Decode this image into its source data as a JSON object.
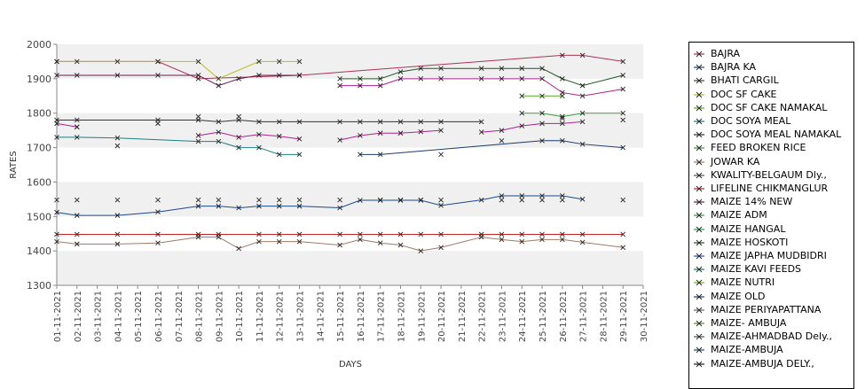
{
  "chart_data": {
    "type": "line",
    "xlabel": "DAYS",
    "ylabel": "RATES",
    "ylim": [
      1300,
      2000
    ],
    "yticks": [
      1300,
      1400,
      1500,
      1600,
      1700,
      1800,
      1900,
      2000
    ],
    "grid": "alternating bands",
    "legend": "right",
    "x": [
      "01-11-2021",
      "02-11-2021",
      "03-11-2021",
      "04-11-2021",
      "05-11-2021",
      "06-11-2021",
      "07-11-2021",
      "08-11-2021",
      "09-11-2021",
      "10-11-2021",
      "11-11-2021",
      "12-11-2021",
      "13-11-2021",
      "14-11-2021",
      "15-11-2021",
      "16-11-2021",
      "17-11-2021",
      "18-11-2021",
      "19-11-2021",
      "20-11-2021",
      "21-11-2021",
      "22-11-2021",
      "23-11-2021",
      "24-11-2021",
      "25-11-2021",
      "26-11-2021",
      "27-11-2021",
      "28-11-2021",
      "29-11-2021",
      "30-11-2021"
    ],
    "series": [
      {
        "name": "BAJRA",
        "color": "#aa3355",
        "points": [
          [
            "01-11-2021",
            1950
          ],
          [
            "06-11-2021",
            1950
          ],
          [
            "08-11-2021",
            1900
          ],
          [
            "13-11-2021",
            1910
          ],
          [
            "26-11-2021",
            1968
          ],
          [
            "27-11-2021",
            1968
          ],
          [
            "29-11-2021",
            1950
          ]
        ]
      },
      {
        "name": "BAJRA KA",
        "color": "#1a4a8a",
        "points": [
          [
            "01-11-2021",
            1512
          ],
          [
            "02-11-2021",
            1503
          ],
          [
            "04-11-2021",
            1503
          ],
          [
            "06-11-2021",
            1513
          ],
          [
            "08-11-2021",
            1530
          ],
          [
            "09-11-2021",
            1530
          ],
          [
            "10-11-2021",
            1525
          ],
          [
            "11-11-2021",
            1530
          ],
          [
            "12-11-2021",
            1530
          ],
          [
            "13-11-2021",
            1530
          ],
          [
            "15-11-2021",
            1525
          ],
          [
            "16-11-2021",
            1547
          ],
          [
            "17-11-2021",
            1547
          ],
          [
            "18-11-2021",
            1547
          ],
          [
            "19-11-2021",
            1547
          ],
          [
            "20-11-2021",
            1532
          ],
          [
            "22-11-2021",
            1548
          ],
          [
            "23-11-2021",
            1560
          ],
          [
            "24-11-2021",
            1560
          ],
          [
            "25-11-2021",
            1560
          ],
          [
            "26-11-2021",
            1560
          ],
          [
            "27-11-2021",
            1550
          ]
        ]
      },
      {
        "name": "BHATI CARGIL",
        "color": "#444444",
        "points": [
          [
            "01-11-2021",
            1548
          ],
          [
            "02-11-2021",
            1548
          ],
          [
            "04-11-2021",
            1548
          ],
          [
            "06-11-2021",
            1548
          ],
          [
            "08-11-2021",
            1548
          ],
          [
            "09-11-2021",
            1548
          ],
          [
            "11-11-2021",
            1548
          ],
          [
            "12-11-2021",
            1548
          ],
          [
            "13-11-2021",
            1548
          ],
          [
            "15-11-2021",
            1548
          ],
          [
            "17-11-2021",
            1548
          ],
          [
            "18-11-2021",
            1548
          ],
          [
            "19-11-2021",
            1548
          ],
          [
            "20-11-2021",
            1548
          ],
          [
            "23-11-2021",
            1548
          ],
          [
            "24-11-2021",
            1548
          ],
          [
            "25-11-2021",
            1548
          ],
          [
            "26-11-2021",
            1548
          ],
          [
            "29-11-2021",
            1548
          ]
        ]
      },
      {
        "name": "DOC SF CAKE",
        "color": "#b8bb22",
        "points": [
          [
            "01-11-2021",
            1950
          ],
          [
            "02-11-2021",
            1950
          ],
          [
            "04-11-2021",
            1950
          ],
          [
            "06-11-2021",
            1950
          ],
          [
            "08-11-2021",
            1950
          ],
          [
            "09-11-2021",
            1900
          ],
          [
            "11-11-2021",
            1950
          ],
          [
            "12-11-2021",
            1950
          ],
          [
            "13-11-2021",
            1950
          ]
        ]
      },
      {
        "name": "DOC SF CAKE NAMAKAL",
        "color": "#55aa22",
        "points": [
          [
            "24-11-2021",
            1850
          ],
          [
            "25-11-2021",
            1850
          ],
          [
            "26-11-2021",
            1850
          ]
        ]
      },
      {
        "name": "DOC SOYA MEAL",
        "color": "#1c7f7f",
        "points": [
          [
            "01-11-2021",
            1730
          ],
          [
            "02-11-2021",
            1730
          ],
          [
            "04-11-2021",
            1728
          ],
          [
            "08-11-2021",
            1718
          ],
          [
            "09-11-2021",
            1718
          ],
          [
            "10-11-2021",
            1700
          ],
          [
            "11-11-2021",
            1700
          ],
          [
            "12-11-2021",
            1680
          ],
          [
            "13-11-2021",
            1680
          ]
        ]
      },
      {
        "name": "DOC SOYA MEAL NAMAKAL",
        "color": "#333333",
        "points": [
          [
            "01-11-2021",
            1780
          ],
          [
            "02-11-2021",
            1780
          ],
          [
            "06-11-2021",
            1780
          ],
          [
            "08-11-2021",
            1780
          ],
          [
            "09-11-2021",
            1775
          ],
          [
            "10-11-2021",
            1780
          ],
          [
            "11-11-2021",
            1775
          ],
          [
            "12-11-2021",
            1775
          ],
          [
            "13-11-2021",
            1775
          ],
          [
            "15-11-2021",
            1775
          ],
          [
            "16-11-2021",
            1775
          ],
          [
            "17-11-2021",
            1775
          ],
          [
            "18-11-2021",
            1775
          ],
          [
            "19-11-2021",
            1775
          ],
          [
            "20-11-2021",
            1775
          ],
          [
            "22-11-2021",
            1775
          ]
        ]
      },
      {
        "name": "FEED BROKEN RICE",
        "color": "#3c9a3c",
        "points": [
          [
            "24-11-2021",
            1800
          ],
          [
            "25-11-2021",
            1800
          ],
          [
            "26-11-2021",
            1790
          ],
          [
            "27-11-2021",
            1800
          ],
          [
            "29-11-2021",
            1800
          ]
        ]
      },
      {
        "name": "JOWAR KA",
        "color": "#9e7a68",
        "points": [
          [
            "01-11-2021",
            1427
          ],
          [
            "02-11-2021",
            1420
          ],
          [
            "04-11-2021",
            1420
          ],
          [
            "06-11-2021",
            1423
          ],
          [
            "08-11-2021",
            1440
          ],
          [
            "09-11-2021",
            1440
          ],
          [
            "10-11-2021",
            1407
          ],
          [
            "11-11-2021",
            1427
          ],
          [
            "12-11-2021",
            1427
          ],
          [
            "13-11-2021",
            1427
          ],
          [
            "15-11-2021",
            1417
          ],
          [
            "16-11-2021",
            1433
          ],
          [
            "17-11-2021",
            1423
          ],
          [
            "18-11-2021",
            1417
          ],
          [
            "19-11-2021",
            1400
          ],
          [
            "20-11-2021",
            1410
          ],
          [
            "22-11-2021",
            1440
          ],
          [
            "23-11-2021",
            1433
          ],
          [
            "24-11-2021",
            1427
          ],
          [
            "25-11-2021",
            1433
          ],
          [
            "26-11-2021",
            1433
          ],
          [
            "27-11-2021",
            1425
          ],
          [
            "29-11-2021",
            1410
          ]
        ]
      },
      {
        "name": "KWALITY-BELGAUM Dly.,",
        "color": "#555555",
        "points": [
          [
            "02-11-2021",
            1760
          ],
          [
            "04-11-2021",
            1705
          ],
          [
            "06-11-2021",
            1770
          ],
          [
            "08-11-2021",
            1790
          ],
          [
            "10-11-2021",
            1790
          ],
          [
            "20-11-2021",
            1680
          ],
          [
            "23-11-2021",
            1720
          ],
          [
            "26-11-2021",
            1785
          ],
          [
            "29-11-2021",
            1780
          ]
        ]
      },
      {
        "name": "LIFELINE CHIKMANGLUR",
        "color": "#cc2222",
        "points": [
          [
            "01-11-2021",
            1448
          ],
          [
            "02-11-2021",
            1448
          ],
          [
            "04-11-2021",
            1448
          ],
          [
            "06-11-2021",
            1448
          ],
          [
            "08-11-2021",
            1448
          ],
          [
            "09-11-2021",
            1448
          ],
          [
            "11-11-2021",
            1448
          ],
          [
            "12-11-2021",
            1448
          ],
          [
            "13-11-2021",
            1448
          ],
          [
            "15-11-2021",
            1448
          ],
          [
            "16-11-2021",
            1448
          ],
          [
            "17-11-2021",
            1448
          ],
          [
            "18-11-2021",
            1448
          ],
          [
            "19-11-2021",
            1448
          ],
          [
            "20-11-2021",
            1448
          ],
          [
            "22-11-2021",
            1448
          ],
          [
            "23-11-2021",
            1448
          ],
          [
            "24-11-2021",
            1448
          ],
          [
            "25-11-2021",
            1448
          ],
          [
            "26-11-2021",
            1448
          ],
          [
            "27-11-2021",
            1448
          ],
          [
            "29-11-2021",
            1448
          ]
        ]
      },
      {
        "name": "MAIZE 14% NEW",
        "color": "#6a1a4a",
        "points": [
          [
            "01-11-2021",
            1910
          ],
          [
            "02-11-2021",
            1910
          ],
          [
            "04-11-2021",
            1910
          ],
          [
            "06-11-2021",
            1910
          ],
          [
            "08-11-2021",
            1910
          ],
          [
            "09-11-2021",
            1880
          ],
          [
            "10-11-2021",
            1900
          ],
          [
            "11-11-2021",
            1910
          ],
          [
            "12-11-2021",
            1910
          ],
          [
            "13-11-2021",
            1910
          ]
        ]
      },
      {
        "name": "MAIZE ADM",
        "color": "#339933",
        "points": []
      },
      {
        "name": "MAIZE HANGAL",
        "color": "#22aa44",
        "points": []
      },
      {
        "name": "MAIZE HOSKOTI",
        "color": "#225522",
        "points": [
          [
            "15-11-2021",
            1900
          ],
          [
            "16-11-2021",
            1900
          ],
          [
            "17-11-2021",
            1900
          ],
          [
            "18-11-2021",
            1920
          ],
          [
            "19-11-2021",
            1930
          ],
          [
            "20-11-2021",
            1930
          ],
          [
            "22-11-2021",
            1930
          ],
          [
            "23-11-2021",
            1930
          ],
          [
            "24-11-2021",
            1930
          ],
          [
            "25-11-2021",
            1930
          ],
          [
            "26-11-2021",
            1900
          ],
          [
            "27-11-2021",
            1880
          ],
          [
            "29-11-2021",
            1910
          ]
        ]
      },
      {
        "name": "MAIZE JAPHA MUDBIDRI",
        "color": "#2255bb",
        "points": []
      },
      {
        "name": "MAIZE KAVI FEEDS",
        "color": "#227755",
        "points": []
      },
      {
        "name": "MAIZE NUTRI",
        "color": "#77aa11",
        "points": []
      },
      {
        "name": "MAIZE OLD",
        "color": "#1b3a6b",
        "points": [
          [
            "16-11-2021",
            1680
          ],
          [
            "17-11-2021",
            1680
          ],
          [
            "25-11-2021",
            1720
          ],
          [
            "26-11-2021",
            1720
          ],
          [
            "27-11-2021",
            1710
          ],
          [
            "29-11-2021",
            1700
          ]
        ]
      },
      {
        "name": "MAIZE PERIYAPATTANA",
        "color": "#666666",
        "points": []
      },
      {
        "name": "MAIZE- AMBUJA",
        "color": "#558833",
        "points": []
      },
      {
        "name": "MAIZE-AHMADBAD Dely.,",
        "color": "#445566",
        "points": []
      },
      {
        "name": "MAIZE-AMBUJA",
        "color": "#115566",
        "points": []
      },
      {
        "name": "MAIZE-AMBUJA DELY.,",
        "color": "#222222",
        "points": []
      },
      {
        "name": "",
        "color": "#b0208f",
        "points": [
          [
            "01-11-2021",
            1770
          ],
          [
            "02-11-2021",
            1760
          ]
        ]
      },
      {
        "name": "",
        "color": "#b0208f",
        "points": [
          [
            "08-11-2021",
            1735
          ],
          [
            "09-11-2021",
            1745
          ],
          [
            "10-11-2021",
            1730
          ],
          [
            "11-11-2021",
            1738
          ],
          [
            "12-11-2021",
            1733
          ],
          [
            "13-11-2021",
            1725
          ]
        ]
      },
      {
        "name": "",
        "color": "#b0208f",
        "points": [
          [
            "15-11-2021",
            1722
          ],
          [
            "16-11-2021",
            1735
          ],
          [
            "17-11-2021",
            1742
          ],
          [
            "18-11-2021",
            1742
          ],
          [
            "19-11-2021",
            1746
          ],
          [
            "20-11-2021",
            1750
          ]
        ]
      },
      {
        "name": "",
        "color": "#b0208f",
        "points": [
          [
            "22-11-2021",
            1745
          ],
          [
            "23-11-2021",
            1750
          ],
          [
            "24-11-2021",
            1763
          ],
          [
            "25-11-2021",
            1770
          ],
          [
            "26-11-2021",
            1770
          ],
          [
            "27-11-2021",
            1775
          ]
        ]
      },
      {
        "name": "",
        "color": "#b0208f",
        "points": [
          [
            "15-11-2021",
            1880
          ],
          [
            "16-11-2021",
            1880
          ],
          [
            "17-11-2021",
            1880
          ],
          [
            "18-11-2021",
            1900
          ],
          [
            "19-11-2021",
            1900
          ],
          [
            "20-11-2021",
            1900
          ],
          [
            "22-11-2021",
            1900
          ],
          [
            "23-11-2021",
            1900
          ],
          [
            "24-11-2021",
            1900
          ],
          [
            "25-11-2021",
            1900
          ],
          [
            "26-11-2021",
            1860
          ],
          [
            "27-11-2021",
            1850
          ],
          [
            "29-11-2021",
            1870
          ]
        ]
      }
    ]
  }
}
